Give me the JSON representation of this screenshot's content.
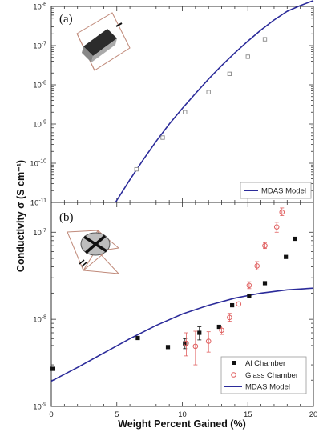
{
  "chart_data": [
    {
      "panel": "top",
      "label": "(a)",
      "type": "scatter",
      "xlabel": "",
      "ylabel": "",
      "y_scale": "log",
      "xlim": [
        0,
        20
      ],
      "ylim": [
        1e-11,
        1e-06
      ],
      "y_ticks": [
        {
          "value": 1e-06,
          "mantissa": "10",
          "exp": "-6"
        },
        {
          "value": 1e-07,
          "mantissa": "10",
          "exp": "-7"
        },
        {
          "value": 1e-08,
          "mantissa": "10",
          "exp": "-8"
        },
        {
          "value": 1e-09,
          "mantissa": "10",
          "exp": "-9"
        },
        {
          "value": 1e-10,
          "mantissa": "10",
          "exp": "-10"
        },
        {
          "value": 1e-11,
          "mantissa": "10",
          "exp": "-11"
        }
      ],
      "legend": {
        "placement": "bottom-right",
        "entries": [
          "MDAS Model"
        ]
      },
      "series": [
        {
          "marker": "open-square",
          "color": "#8a8a8a",
          "points": [
            {
              "x": 6.5,
              "y": 7e-11
            },
            {
              "x": 8.5,
              "y": 4.5e-10
            },
            {
              "x": 10.2,
              "y": 2e-09
            },
            {
              "x": 12.0,
              "y": 6.5e-09
            },
            {
              "x": 13.6,
              "y": 1.9e-08
            },
            {
              "x": 15.0,
              "y": 5.2e-08
            },
            {
              "x": 16.3,
              "y": 1.45e-07
            }
          ]
        },
        {
          "name": "MDAS Model",
          "kind": "line",
          "color": "#2b2b9a",
          "points": [
            {
              "x": 4.9,
              "y": 1e-11
            },
            {
              "x": 6,
              "y": 3.8e-11
            },
            {
              "x": 7,
              "y": 1.2e-10
            },
            {
              "x": 8,
              "y": 3.6e-10
            },
            {
              "x": 9,
              "y": 1e-09
            },
            {
              "x": 10,
              "y": 2.5e-09
            },
            {
              "x": 11,
              "y": 6e-09
            },
            {
              "x": 12,
              "y": 1.4e-08
            },
            {
              "x": 13,
              "y": 3.1e-08
            },
            {
              "x": 14,
              "y": 6.5e-08
            },
            {
              "x": 15,
              "y": 1.3e-07
            },
            {
              "x": 16,
              "y": 2.5e-07
            },
            {
              "x": 17,
              "y": 4.5e-07
            },
            {
              "x": 18,
              "y": 7.5e-07
            },
            {
              "x": 19,
              "y": 1.05e-06
            },
            {
              "x": 20,
              "y": 1.4e-06
            }
          ]
        }
      ]
    },
    {
      "panel": "bottom",
      "label": "(b)",
      "type": "scatter",
      "xlabel": "Weight Percent Gained (%)",
      "ylabel": "",
      "y_scale": "log",
      "xlim": [
        0,
        20
      ],
      "ylim": [
        1e-09,
        2.2e-07
      ],
      "x_ticks": [
        "0",
        "5",
        "10",
        "15",
        "20"
      ],
      "y_ticks": [
        {
          "value": 1e-07,
          "mantissa": "10",
          "exp": "-7"
        },
        {
          "value": 1e-08,
          "mantissa": "10",
          "exp": "-8"
        },
        {
          "value": 1e-09,
          "mantissa": "10",
          "exp": "-9"
        }
      ],
      "legend": {
        "placement": "bottom-right",
        "entries": [
          "Al Chamber",
          "Glass Chamber",
          "MDAS Model"
        ]
      },
      "series": [
        {
          "name": "Al Chamber",
          "marker": "filled-square",
          "color": "#111111",
          "points": [
            {
              "x": 0.1,
              "y": 2.7e-09
            },
            {
              "x": 6.6,
              "y": 6.1e-09
            },
            {
              "x": 8.9,
              "y": 4.8e-09
            },
            {
              "x": 10.2,
              "y": 5.3e-09,
              "err": [
                4.6e-09,
                6e-09
              ]
            },
            {
              "x": 11.3,
              "y": 7e-09,
              "err": [
                5.8e-09,
                8.2e-09
              ]
            },
            {
              "x": 12.8,
              "y": 8.2e-09
            },
            {
              "x": 13.8,
              "y": 1.45e-08
            },
            {
              "x": 15.1,
              "y": 1.85e-08
            },
            {
              "x": 16.3,
              "y": 2.6e-08
            },
            {
              "x": 17.9,
              "y": 5.2e-08
            },
            {
              "x": 18.6,
              "y": 8.4e-08
            }
          ]
        },
        {
          "name": "Glass Chamber",
          "marker": "open-circle",
          "color": "#e06060",
          "points": [
            {
              "x": 10.3,
              "y": 5.3e-09,
              "err": [
                3.8e-09,
                7e-09
              ]
            },
            {
              "x": 11.0,
              "y": 4.9e-09,
              "err": [
                3e-09,
                7.3e-09
              ]
            },
            {
              "x": 12.0,
              "y": 5.6e-09,
              "err": [
                4.2e-09,
                7.2e-09
              ]
            },
            {
              "x": 13.0,
              "y": 7.5e-09,
              "err": [
                6.7e-09,
                8.4e-09
              ]
            },
            {
              "x": 13.6,
              "y": 1.05e-08,
              "err": [
                9.5e-09,
                1.17e-08
              ]
            },
            {
              "x": 14.3,
              "y": 1.5e-08
            },
            {
              "x": 15.1,
              "y": 2.45e-08,
              "err": [
                2.25e-08,
                2.7e-08
              ]
            },
            {
              "x": 15.7,
              "y": 4.1e-08,
              "err": [
                3.7e-08,
                4.6e-08
              ]
            },
            {
              "x": 16.3,
              "y": 7e-08,
              "err": [
                6.5e-08,
                7.6e-08
              ]
            },
            {
              "x": 17.2,
              "y": 1.15e-07,
              "err": [
                1e-07,
                1.3e-07
              ]
            },
            {
              "x": 17.6,
              "y": 1.7e-07,
              "err": [
                1.55e-07,
                1.9e-07
              ]
            }
          ]
        },
        {
          "name": "MDAS Model",
          "kind": "line",
          "color": "#2b2b9a",
          "points": [
            {
              "x": 0,
              "y": 1.95e-09
            },
            {
              "x": 2,
              "y": 2.8e-09
            },
            {
              "x": 4,
              "y": 4.1e-09
            },
            {
              "x": 6,
              "y": 6e-09
            },
            {
              "x": 8,
              "y": 8.5e-09
            },
            {
              "x": 10,
              "y": 1.15e-08
            },
            {
              "x": 12,
              "y": 1.45e-08
            },
            {
              "x": 14,
              "y": 1.75e-08
            },
            {
              "x": 16,
              "y": 2e-08
            },
            {
              "x": 18,
              "y": 2.18e-08
            },
            {
              "x": 20,
              "y": 2.28e-08
            }
          ]
        }
      ]
    }
  ],
  "shared": {
    "ylabel": "Conductivity σ (S cm⁻¹)",
    "colors": {
      "model_line": "#2b2b9a",
      "glass": "#e06060",
      "al": "#111111",
      "frame_sketch": "#c08a7a"
    },
    "icons": [
      "sample-bar-sketch-icon",
      "cross-sample-sketch-icon"
    ]
  }
}
